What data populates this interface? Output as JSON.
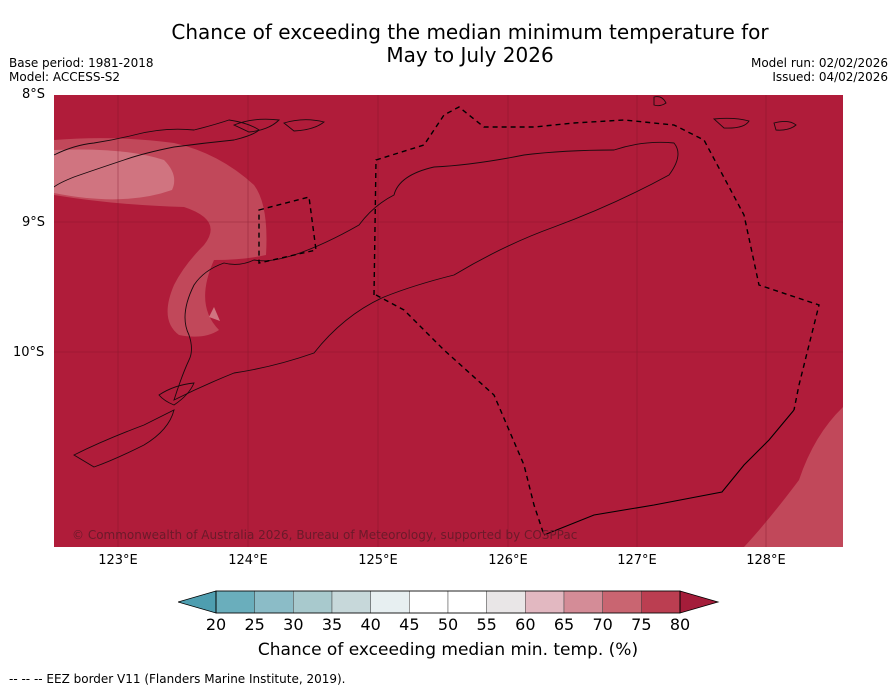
{
  "title_line1": "Chance of exceeding the median minimum temperature for",
  "title_line2": "May to July 2026",
  "meta_left": [
    "Base period: 1981-2018",
    "Model: ACCESS-S2"
  ],
  "meta_right": [
    "Model run: 02/02/2026",
    "Issued: 04/02/2026"
  ],
  "lat_labels": [
    "8°S",
    "9°S",
    "10°S"
  ],
  "lon_labels": [
    "123°E",
    "124°E",
    "125°E",
    "126°E",
    "127°E",
    "128°E"
  ],
  "copyright": "© Commonwealth of Australia 2026, Bureau of Meteorology, supported by COSPPac",
  "colorbar": {
    "ticks": [
      "20",
      "25",
      "30",
      "35",
      "40",
      "45",
      "50",
      "55",
      "60",
      "65",
      "70",
      "75",
      "80"
    ],
    "colors": [
      "#6aaebc",
      "#8bbcc7",
      "#a8c9cd",
      "#c7d8da",
      "#e7eff1",
      "#ffffff",
      "#ffffff",
      "#e9e6e7",
      "#e2b8c1",
      "#d48c97",
      "#c96571",
      "#bb3e51"
    ],
    "under_color": "#4e9eb0",
    "over_color": "#a41d3a",
    "title": "Chance of exceeding median min. temp. (%)"
  },
  "map_colors": {
    "dominant": "#b01c3a",
    "band_75": "#c1485a",
    "band_70": "#d07480"
  },
  "footnote": "--  --  -- EEZ border V11 (Flanders Marine Institute, 2019)."
}
